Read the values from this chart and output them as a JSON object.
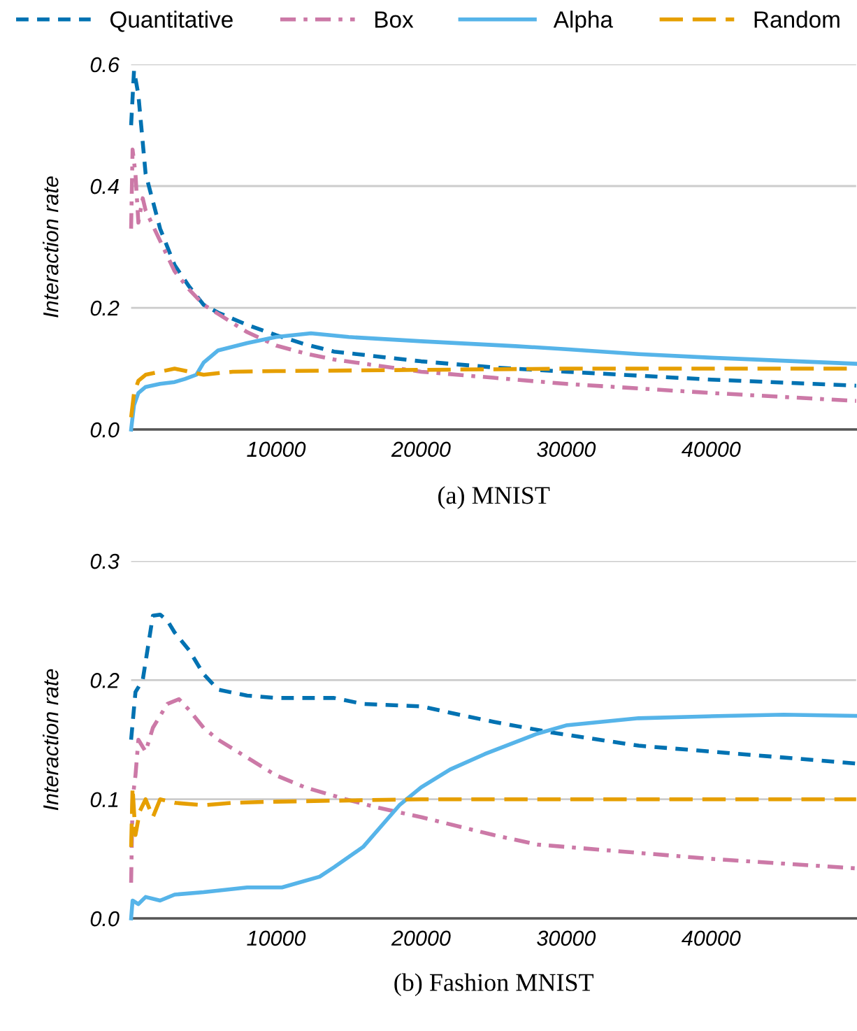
{
  "chart_data": [
    {
      "type": "line",
      "title": "(a) MNIST",
      "ylabel": "Interaction rate",
      "xlim": [
        0,
        50000
      ],
      "xticks": [
        10000,
        20000,
        30000,
        40000
      ],
      "ylim": [
        0,
        0.6
      ],
      "yticks": [
        {
          "value": 0,
          "label": "0.0"
        },
        0.2,
        0.4,
        0.6
      ],
      "grid": "y",
      "legend": "top",
      "series": [
        {
          "name": "Quantitative",
          "color": "#0072b2",
          "line_style": "dashed",
          "x": [
            0,
            200,
            500,
            1000,
            2000,
            3000,
            4000,
            5000,
            6000,
            8000,
            10000,
            12000,
            14000,
            20000,
            25000,
            30000,
            40000,
            50000
          ],
          "values": [
            0.5,
            0.59,
            0.55,
            0.42,
            0.33,
            0.27,
            0.235,
            0.205,
            0.192,
            0.172,
            0.155,
            0.14,
            0.128,
            0.112,
            0.102,
            0.095,
            0.082,
            0.072
          ]
        },
        {
          "name": "Box",
          "color": "#cc79a7",
          "line_style": "dashdot",
          "x": [
            0,
            100,
            300,
            500,
            800,
            1000,
            2000,
            3000,
            4000,
            5000,
            6000,
            8000,
            10000,
            12000,
            14000,
            20000,
            25000,
            30000,
            40000,
            50000
          ],
          "values": [
            0.33,
            0.46,
            0.42,
            0.34,
            0.38,
            0.36,
            0.31,
            0.26,
            0.23,
            0.205,
            0.19,
            0.16,
            0.138,
            0.125,
            0.115,
            0.095,
            0.085,
            0.075,
            0.06,
            0.047
          ]
        },
        {
          "name": "Alpha",
          "color": "#56b4e9",
          "line_style": "solid",
          "x": [
            0,
            200,
            500,
            1000,
            2000,
            3000,
            3700,
            4500,
            5000,
            6000,
            8000,
            10000,
            12400,
            15000,
            20000,
            26500,
            30000,
            35000,
            40000,
            50000
          ],
          "values": [
            0.0,
            0.04,
            0.06,
            0.07,
            0.075,
            0.078,
            0.083,
            0.09,
            0.11,
            0.13,
            0.142,
            0.152,
            0.158,
            0.152,
            0.145,
            0.137,
            0.132,
            0.124,
            0.118,
            0.108
          ]
        },
        {
          "name": "Random",
          "color": "#e69f00",
          "line_style": "longdash",
          "x": [
            0,
            200,
            500,
            1000,
            2000,
            3000,
            4000,
            5000,
            7000,
            10000,
            20000,
            30000,
            50000
          ],
          "values": [
            0.02,
            0.06,
            0.08,
            0.09,
            0.095,
            0.1,
            0.095,
            0.09,
            0.095,
            0.096,
            0.098,
            0.1,
            0.1
          ]
        }
      ]
    },
    {
      "type": "line",
      "title": "(b) Fashion MNIST",
      "ylabel": "Interaction rate",
      "xlim": [
        0,
        50000
      ],
      "xticks": [
        10000,
        20000,
        30000,
        40000
      ],
      "ylim": [
        0,
        0.3
      ],
      "yticks": [
        {
          "value": 0,
          "label": "0.0"
        },
        0.1,
        0.2,
        0.3
      ],
      "grid": "y",
      "series": [
        {
          "color": "#0072b2",
          "line_style": "dashed",
          "x": [
            0,
            300,
            800,
            1500,
            2000,
            2500,
            3000,
            4000,
            5000,
            6000,
            8000,
            10000,
            14000,
            16000,
            20000,
            23000,
            25000,
            29000,
            35000,
            40000,
            50000
          ],
          "values": [
            0.15,
            0.19,
            0.2,
            0.254,
            0.255,
            0.25,
            0.24,
            0.225,
            0.205,
            0.192,
            0.187,
            0.185,
            0.185,
            0.18,
            0.178,
            0.17,
            0.165,
            0.156,
            0.145,
            0.14,
            0.13
          ]
        },
        {
          "color": "#cc79a7",
          "line_style": "dashdot",
          "x": [
            0,
            100,
            300,
            500,
            1000,
            1500,
            2500,
            3300,
            4000,
            5000,
            6000,
            8000,
            10000,
            12000,
            14800,
            17000,
            20000,
            25000,
            28000,
            40000,
            50000
          ],
          "values": [
            0.03,
            0.1,
            0.12,
            0.15,
            0.14,
            0.16,
            0.18,
            0.184,
            0.175,
            0.16,
            0.15,
            0.135,
            0.12,
            0.11,
            0.1,
            0.093,
            0.085,
            0.07,
            0.062,
            0.05,
            0.042
          ]
        },
        {
          "color": "#56b4e9",
          "line_style": "solid",
          "x": [
            0,
            100,
            500,
            1000,
            2000,
            3000,
            5000,
            8000,
            10400,
            13000,
            14000,
            16000,
            18500,
            20000,
            22000,
            24400,
            28000,
            30000,
            35000,
            41000,
            45000,
            50000
          ],
          "values": [
            0.0,
            0.015,
            0.012,
            0.018,
            0.015,
            0.02,
            0.022,
            0.026,
            0.026,
            0.035,
            0.043,
            0.06,
            0.095,
            0.11,
            0.125,
            0.138,
            0.155,
            0.162,
            0.168,
            0.17,
            0.171,
            0.17
          ]
        },
        {
          "color": "#e69f00",
          "line_style": "longdash",
          "x": [
            0,
            100,
            300,
            600,
            1000,
            1500,
            2000,
            3000,
            5000,
            7000,
            10000,
            20000,
            50000
          ],
          "values": [
            0.06,
            0.11,
            0.07,
            0.09,
            0.1,
            0.085,
            0.1,
            0.097,
            0.095,
            0.097,
            0.098,
            0.1,
            0.1
          ]
        }
      ]
    }
  ]
}
